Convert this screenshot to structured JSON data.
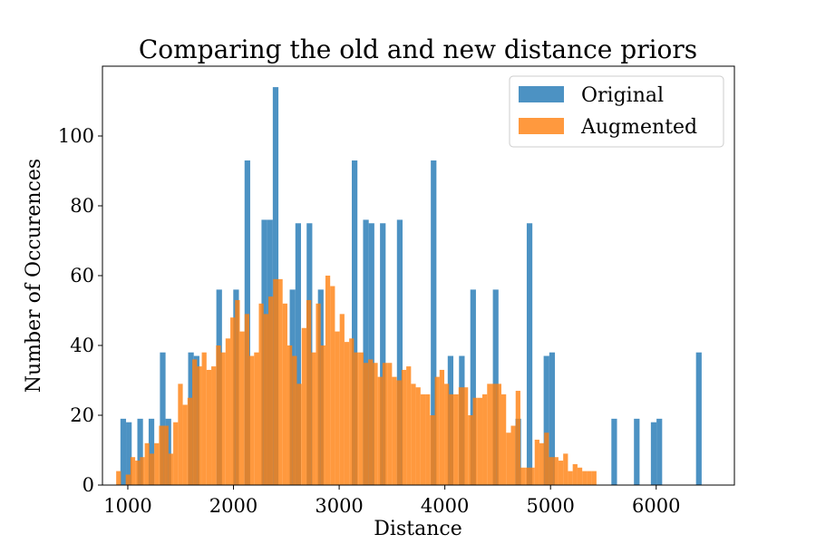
{
  "chart_data": {
    "type": "bar",
    "title": "Comparing the old and new distance priors",
    "xlabel": "Distance",
    "ylabel": "Number of Occurences",
    "xlim": [
      760,
      6740
    ],
    "ylim": [
      0,
      120
    ],
    "xticks": [
      1000,
      2000,
      3000,
      4000,
      5000,
      6000
    ],
    "yticks": [
      0,
      20,
      40,
      60,
      80,
      100
    ],
    "grid": false,
    "legend_position": "top-right",
    "series": [
      {
        "name": "Original",
        "color": "#1f77b4",
        "opacity": 0.8,
        "bin_start": 930,
        "bin_width": 53.4,
        "values": [
          19,
          18,
          0,
          19,
          0,
          19,
          0,
          38,
          19,
          0,
          0,
          0,
          38,
          37,
          0,
          0,
          0,
          56,
          0,
          0,
          56,
          0,
          93,
          0,
          0,
          76,
          76,
          114,
          0,
          0,
          56,
          75,
          0,
          75,
          0,
          56,
          0,
          0,
          0,
          0,
          0,
          93,
          0,
          76,
          75,
          0,
          75,
          0,
          0,
          76,
          0,
          0,
          0,
          0,
          0,
          93,
          0,
          0,
          37,
          0,
          37,
          0,
          56,
          0,
          0,
          0,
          56,
          0,
          0,
          0,
          19,
          0,
          75,
          0,
          0,
          37,
          38,
          0,
          0,
          0,
          0,
          0,
          0,
          0,
          0,
          0,
          0,
          19,
          0,
          0,
          0,
          19,
          0,
          0,
          18,
          19,
          0,
          0,
          0,
          0,
          0,
          0,
          38,
          0,
          0,
          0
        ]
      },
      {
        "name": "Augmented",
        "color": "#ff7f0e",
        "opacity": 0.8,
        "bin_start": 890,
        "bin_width": 45,
        "values": [
          4,
          0,
          3,
          8,
          7,
          8,
          12,
          9,
          12,
          17,
          17,
          9,
          18,
          29,
          23,
          25,
          36,
          34,
          38,
          33,
          34,
          40,
          38,
          42,
          48,
          53,
          44,
          49,
          37,
          38,
          52,
          49,
          54,
          59,
          59,
          52,
          40,
          37,
          29,
          45,
          53,
          38,
          52,
          40,
          60,
          57,
          44,
          49,
          41,
          42,
          38,
          38,
          35,
          36,
          35,
          31,
          35,
          35,
          31,
          30,
          33,
          34,
          29,
          28,
          26,
          26,
          20,
          31,
          33,
          29,
          26,
          26,
          28,
          28,
          20,
          25,
          25,
          26,
          29,
          29,
          29,
          26,
          15,
          17,
          27,
          5,
          5,
          5,
          13,
          12,
          15,
          8,
          8,
          7,
          9,
          4,
          6,
          5,
          4,
          4,
          4
        ]
      }
    ]
  }
}
